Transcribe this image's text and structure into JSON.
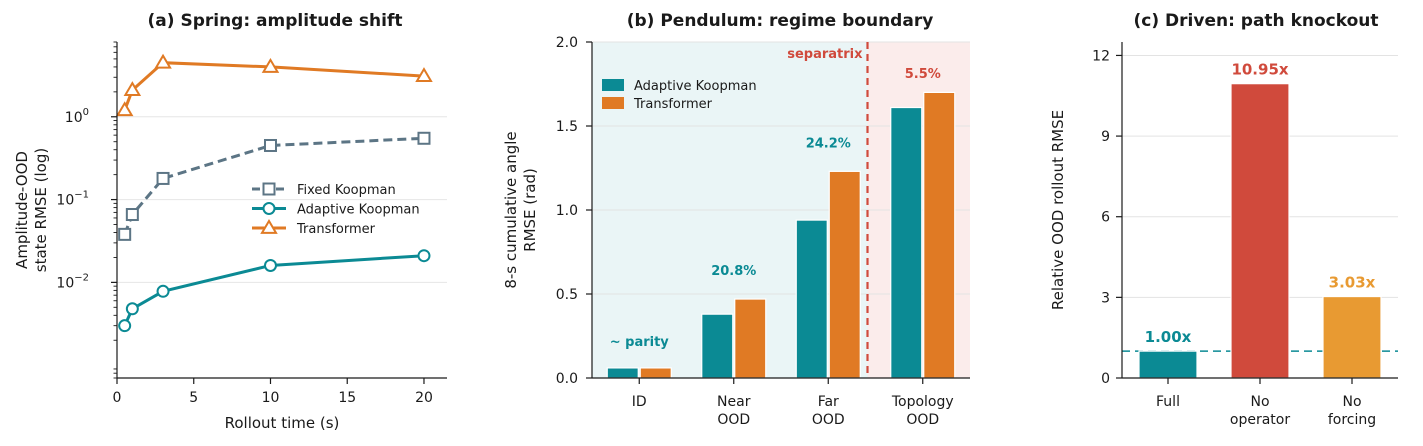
{
  "colors": {
    "teal": "#0b8a94",
    "orange": "#e07a24",
    "slate": "#5c7585",
    "red": "#d04a3c",
    "amber": "#e89a32",
    "id_shade": "#eaf5f6",
    "ood_shade": "#fbeceb"
  },
  "chart_data": [
    {
      "type": "line",
      "title": "(a)  Spring: amplitude shift",
      "xlabel": "Rollout time (s)",
      "ylabel_lines": [
        "Amplitude-OOD",
        "state RMSE (log)"
      ],
      "xlim": [
        0,
        21.5
      ],
      "ylim": [
        0.0007,
        8
      ],
      "yscale": "log",
      "xticks": [
        "0",
        "5",
        "10",
        "15",
        "20"
      ],
      "yticks": [
        {
          "base": "10",
          "exp": "0",
          "value": 1
        },
        {
          "base": "10",
          "exp": "−1",
          "value": 0.1
        },
        {
          "base": "10",
          "exp": "−2",
          "value": 0.01
        }
      ],
      "legend_position": "center-right",
      "x": [
        0.5,
        1,
        3,
        10,
        20
      ],
      "series": [
        {
          "name": "Fixed Koopman",
          "color": "#5c7585",
          "marker": "square",
          "dash": true,
          "values": [
            0.038,
            0.066,
            0.18,
            0.45,
            0.55
          ]
        },
        {
          "name": "Adaptive Koopman",
          "color": "#0b8a94",
          "marker": "circle",
          "dash": false,
          "values": [
            0.003,
            0.0048,
            0.0078,
            0.016,
            0.021
          ]
        },
        {
          "name": "Transformer",
          "color": "#e07a24",
          "marker": "triangle",
          "dash": false,
          "values": [
            1.2,
            2.1,
            4.5,
            4.0,
            3.1
          ]
        }
      ]
    },
    {
      "type": "bar",
      "title": "(b)  Pendulum: regime boundary",
      "ylabel_lines": [
        "8-s cumulative angle",
        "RMSE (rad)"
      ],
      "ylim": [
        0,
        2.0
      ],
      "yticks": [
        "0.0",
        "0.5",
        "1.0",
        "1.5",
        "2.0"
      ],
      "categories": [
        [
          "ID"
        ],
        [
          "Near",
          "OOD"
        ],
        [
          "Far",
          "OOD"
        ],
        [
          "Topology",
          "OOD"
        ]
      ],
      "legend_position": "upper-left",
      "series": [
        {
          "name": "Adaptive Koopman",
          "color": "#0b8a94",
          "values": [
            0.06,
            0.38,
            0.94,
            1.61
          ]
        },
        {
          "name": "Transformer",
          "color": "#e07a24",
          "values": [
            0.06,
            0.47,
            1.23,
            1.7
          ]
        }
      ],
      "bar_annotations": [
        "~ parity",
        "20.8%",
        "24.2%",
        "5.5%"
      ],
      "separatrix_label": "separatrix"
    },
    {
      "type": "bar",
      "title": "(c)  Driven: path knockout",
      "ylabel": "Relative OOD rollout RMSE",
      "ylim": [
        0,
        12.5
      ],
      "yticks": [
        "0",
        "3",
        "6",
        "9",
        "12"
      ],
      "categories": [
        [
          "Full"
        ],
        [
          "No",
          "operator"
        ],
        [
          "No",
          "forcing"
        ]
      ],
      "values": [
        1.0,
        10.95,
        3.03
      ],
      "bar_colors": [
        "#0b8a94",
        "#d04a3c",
        "#e89a32"
      ],
      "labels": [
        "1.00x",
        "10.95x",
        "3.03x"
      ],
      "reference_line": 1.0
    }
  ]
}
